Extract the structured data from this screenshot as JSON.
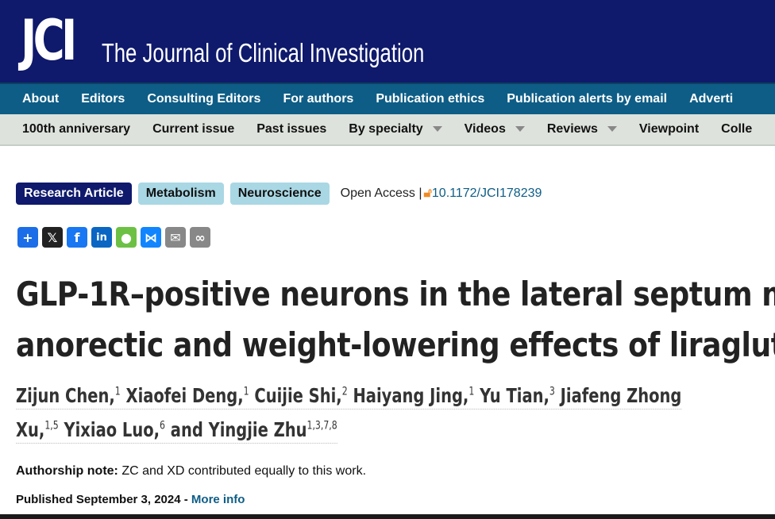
{
  "header": {
    "logo": "JCI",
    "journal_title": "The Journal of Clinical Investigation",
    "brand_color": "#0f1a6c"
  },
  "nav_primary": [
    "About",
    "Editors",
    "Consulting Editors",
    "For authors",
    "Publication ethics",
    "Publication alerts by email",
    "Adverti"
  ],
  "nav_secondary": [
    {
      "label": "100th anniversary"
    },
    {
      "label": "Current issue"
    },
    {
      "label": "Past issues"
    },
    {
      "label": "By specialty",
      "dropdown": true
    },
    {
      "label": "Videos",
      "dropdown": true
    },
    {
      "label": "Reviews",
      "dropdown": true
    },
    {
      "label": "Viewpoint"
    },
    {
      "label": "Colle"
    }
  ],
  "tags": {
    "type": "Research Article",
    "topics": [
      "Metabolism",
      "Neuroscience"
    ],
    "access": "Open Access |",
    "doi": "10.1172/JCI178239"
  },
  "share_icons": [
    "share-plus",
    "x",
    "facebook",
    "linkedin",
    "wechat",
    "bluesky",
    "email",
    "copy-link"
  ],
  "article": {
    "title_lines": [
      "GLP-1R–positive neurons in the lateral septum m",
      "anorectic and weight-lowering effects of liraglut"
    ],
    "authors_line1": [
      [
        "Zijun Chen,",
        "1"
      ],
      [
        "Xiaofei Deng,",
        "1"
      ],
      [
        "Cuijie Shi,",
        "2"
      ],
      [
        "Haiyang Jing,",
        "1"
      ],
      [
        "Yu Tian,",
        "3"
      ],
      [
        "Jiafeng Zhong",
        ""
      ]
    ],
    "authors_line2": [
      [
        "Xu,",
        "1,5"
      ],
      [
        "Yixiao Luo,",
        "6"
      ],
      [
        "and Yingjie Zhu",
        "1,3,7,8"
      ]
    ],
    "authorship_label": "Authorship note:",
    "authorship_text": " ZC and XD contributed equally to this work.",
    "published": "Published September 3, 2024 - ",
    "more_info": "More info"
  }
}
